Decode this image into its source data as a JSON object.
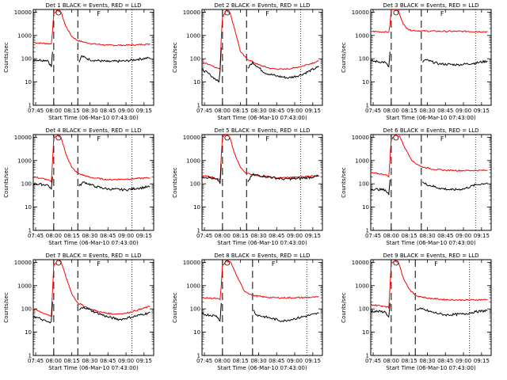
{
  "figure": {
    "xlabel": "Start Time (06-Mar-10 07:43:00)",
    "ylabel": "Counts/sec"
  },
  "chart_data": [
    {
      "type": "line",
      "title": "Det 1 BLACK = Events, RED = LLD",
      "annotation": "F",
      "xlabel": "Start Time (06-Mar-10 07:43:00)",
      "ylabel": "Counts/sec",
      "x_ticks": [
        "07:45",
        "08:00",
        "08:15",
        "08:30",
        "08:45",
        "09:00",
        "09:15"
      ],
      "y_ticks": [
        "1",
        "10",
        "100",
        "1000",
        "10000"
      ],
      "ylim": [
        1,
        13000
      ],
      "y_scale": "log",
      "dashed_markers": [
        "08:00",
        "08:20"
      ],
      "dotted_markers": [
        "09:05"
      ],
      "series": [
        {
          "color": "#ff0000",
          "x": [
            "07:43",
            "07:58",
            "07:59",
            "08:00",
            "08:03",
            "08:06",
            "08:10",
            "08:15",
            "08:20",
            "08:30",
            "08:45",
            "09:00",
            "09:10",
            "09:20"
          ],
          "values": [
            500,
            430,
            1500,
            9000,
            12000,
            10000,
            2500,
            900,
            600,
            450,
            380,
            380,
            400,
            430
          ]
        },
        {
          "color": "#000000",
          "x": [
            "07:43",
            "07:55",
            "07:58",
            "07:59",
            "08:00",
            "08:20",
            "08:21",
            "08:23",
            "08:30",
            "08:45",
            "09:00",
            "09:10",
            "09:20"
          ],
          "values": [
            90,
            85,
            45,
            200,
            null,
            null,
            70,
            130,
            90,
            75,
            80,
            95,
            110
          ]
        }
      ]
    },
    {
      "type": "line",
      "title": "Det 2 BLACK = Events, RED = LLD",
      "annotation": "F",
      "xlabel": "Start Time (06-Mar-10 07:43:00)",
      "ylabel": "Counts/sec",
      "x_ticks": [
        "07:45",
        "08:00",
        "08:15",
        "08:30",
        "08:45",
        "09:00",
        "09:15"
      ],
      "y_ticks": [
        "1",
        "10",
        "100",
        "1000",
        "10000"
      ],
      "ylim": [
        1,
        13000
      ],
      "y_scale": "log",
      "dashed_markers": [
        "08:00",
        "08:20"
      ],
      "dotted_markers": [
        "09:05"
      ],
      "series": [
        {
          "color": "#ff0000",
          "x": [
            "07:43",
            "07:50",
            "07:58",
            "07:59",
            "08:00",
            "08:03",
            "08:06",
            "08:10",
            "08:15",
            "08:20",
            "08:30",
            "08:40",
            "08:50",
            "09:00",
            "09:10",
            "09:20"
          ],
          "values": [
            70,
            55,
            35,
            800,
            6000,
            12000,
            10000,
            2000,
            200,
            100,
            55,
            38,
            35,
            40,
            55,
            80
          ]
        },
        {
          "color": "#000000",
          "x": [
            "07:43",
            "07:50",
            "07:57",
            "07:58",
            "07:59",
            "08:00",
            "08:20",
            "08:21",
            "08:25",
            "08:35",
            "08:45",
            "08:55",
            "09:05",
            "09:20"
          ],
          "values": [
            35,
            20,
            10,
            30,
            300,
            null,
            null,
            40,
            70,
            25,
            18,
            15,
            20,
            45
          ]
        }
      ]
    },
    {
      "type": "line",
      "title": "Det 3 BLACK = Events, RED = LLD",
      "annotation": "F",
      "xlabel": "Start Time (06-Mar-10 07:43:00)",
      "ylabel": "Counts/sec",
      "x_ticks": [
        "07:45",
        "08:00",
        "08:15",
        "08:30",
        "08:45",
        "09:00",
        "09:15"
      ],
      "y_ticks": [
        "1",
        "10",
        "100",
        "1000",
        "10000"
      ],
      "ylim": [
        1,
        13000
      ],
      "y_scale": "log",
      "dashed_markers": [
        "08:00",
        "08:25"
      ],
      "dotted_markers": [
        "09:10"
      ],
      "series": [
        {
          "color": "#ff0000",
          "x": [
            "07:43",
            "07:58",
            "07:59",
            "08:00",
            "08:03",
            "08:06",
            "08:10",
            "08:15",
            "08:25",
            "08:45",
            "09:00",
            "09:20"
          ],
          "values": [
            1500,
            1400,
            3000,
            12000,
            14000,
            12000,
            3000,
            1700,
            1550,
            1500,
            1500,
            1450
          ]
        },
        {
          "color": "#000000",
          "x": [
            "07:43",
            "07:55",
            "07:58",
            "07:59",
            "08:00",
            "08:25",
            "08:26",
            "08:28",
            "08:40",
            "08:55",
            "09:10",
            "09:20"
          ],
          "values": [
            80,
            70,
            45,
            200,
            null,
            null,
            70,
            90,
            60,
            55,
            65,
            80
          ]
        }
      ]
    },
    {
      "type": "line",
      "title": "Det 4 BLACK = Events, RED = LLD",
      "annotation": "F",
      "xlabel": "Start Time (06-Mar-10 07:43:00)",
      "ylabel": "Counts/sec",
      "x_ticks": [
        "07:45",
        "08:00",
        "08:15",
        "08:30",
        "08:45",
        "09:00",
        "09:15"
      ],
      "y_ticks": [
        "1",
        "10",
        "100",
        "1000",
        "10000"
      ],
      "ylim": [
        1,
        13000
      ],
      "y_scale": "log",
      "dashed_markers": [
        "08:00",
        "08:20"
      ],
      "dotted_markers": [
        "09:05"
      ],
      "series": [
        {
          "color": "#ff0000",
          "x": [
            "07:43",
            "07:55",
            "07:58",
            "07:59",
            "08:00",
            "08:03",
            "08:06",
            "08:10",
            "08:15",
            "08:20",
            "08:30",
            "08:45",
            "09:00",
            "09:20"
          ],
          "values": [
            200,
            150,
            120,
            900,
            9000,
            12000,
            10000,
            2000,
            500,
            280,
            190,
            150,
            160,
            180
          ]
        },
        {
          "color": "#000000",
          "x": [
            "07:43",
            "07:55",
            "07:58",
            "07:59",
            "08:00",
            "08:20",
            "08:21",
            "08:25",
            "08:35",
            "08:45",
            "09:00",
            "09:10",
            "09:20"
          ],
          "values": [
            100,
            90,
            60,
            200,
            null,
            null,
            80,
            120,
            75,
            60,
            55,
            65,
            75
          ]
        }
      ]
    },
    {
      "type": "line",
      "title": "Det 5 BLACK = Events, RED = LLD",
      "annotation": "F",
      "xlabel": "Start Time (06-Mar-10 07:43:00)",
      "ylabel": "Counts/sec",
      "x_ticks": [
        "07:45",
        "08:00",
        "08:15",
        "08:30",
        "08:45",
        "09:00",
        "09:15"
      ],
      "y_ticks": [
        "1",
        "10",
        "100",
        "1000",
        "10000"
      ],
      "ylim": [
        1,
        13000
      ],
      "y_scale": "log",
      "dashed_markers": [
        "08:00",
        "08:20"
      ],
      "dotted_markers": [
        "09:05"
      ],
      "series": [
        {
          "color": "#ff0000",
          "x": [
            "07:43",
            "07:50",
            "07:58",
            "07:59",
            "08:00",
            "08:03",
            "08:06",
            "08:10",
            "08:15",
            "08:20",
            "08:30",
            "08:45",
            "09:00",
            "09:20"
          ],
          "values": [
            220,
            200,
            150,
            1500,
            10000,
            13000,
            10000,
            2000,
            500,
            280,
            220,
            180,
            190,
            230
          ]
        },
        {
          "color": "#000000",
          "x": [
            "07:43",
            "07:50",
            "07:57",
            "07:58",
            "07:59",
            "08:00",
            "08:20",
            "08:21",
            "08:25",
            "08:35",
            "08:50",
            "09:05",
            "09:20"
          ],
          "values": [
            200,
            180,
            140,
            100,
            700,
            null,
            null,
            120,
            250,
            210,
            160,
            170,
            210
          ]
        }
      ]
    },
    {
      "type": "line",
      "title": "Det 6 BLACK = Events, RED = LLD",
      "annotation": "F",
      "xlabel": "Start Time (06-Mar-10 07:43:00)",
      "ylabel": "Counts/sec",
      "x_ticks": [
        "07:45",
        "08:00",
        "08:15",
        "08:30",
        "08:45",
        "09:00",
        "09:15"
      ],
      "y_ticks": [
        "1",
        "10",
        "100",
        "1000",
        "10000"
      ],
      "ylim": [
        1,
        13000
      ],
      "y_scale": "log",
      "dashed_markers": [
        "08:00",
        "08:25"
      ],
      "dotted_markers": [
        "09:10"
      ],
      "series": [
        {
          "color": "#ff0000",
          "x": [
            "07:43",
            "07:55",
            "07:58",
            "07:59",
            "08:00",
            "08:03",
            "08:07",
            "08:12",
            "08:18",
            "08:25",
            "08:35",
            "08:45",
            "09:00",
            "09:20"
          ],
          "values": [
            300,
            250,
            200,
            1200,
            8000,
            12000,
            11000,
            3000,
            900,
            550,
            420,
            380,
            370,
            380
          ]
        },
        {
          "color": "#000000",
          "x": [
            "07:43",
            "07:55",
            "07:58",
            "07:59",
            "08:00",
            "08:25",
            "08:26",
            "08:28",
            "08:40",
            "08:50",
            "09:00",
            "09:10",
            "09:20"
          ],
          "values": [
            60,
            55,
            35,
            150,
            null,
            null,
            120,
            100,
            65,
            55,
            60,
            90,
            110
          ]
        }
      ]
    },
    {
      "type": "line",
      "title": "Det 7 BLACK = Events, RED = LLD",
      "annotation": "F",
      "xlabel": "Start Time (06-Mar-10 07:43:00)",
      "ylabel": "Counts/sec",
      "x_ticks": [
        "07:45",
        "08:00",
        "08:15",
        "08:30",
        "08:45",
        "09:00",
        "09:15"
      ],
      "y_ticks": [
        "1",
        "10",
        "100",
        "1000",
        "10000"
      ],
      "ylim": [
        1,
        13000
      ],
      "y_scale": "log",
      "dashed_markers": [
        "08:00",
        "08:20"
      ],
      "dotted_markers": [
        "09:05"
      ],
      "series": [
        {
          "color": "#ff0000",
          "x": [
            "07:43",
            "07:50",
            "07:58",
            "07:59",
            "08:00",
            "08:03",
            "08:06",
            "08:10",
            "08:15",
            "08:20",
            "08:30",
            "08:40",
            "08:50",
            "09:00",
            "09:10",
            "09:20"
          ],
          "values": [
            100,
            70,
            50,
            600,
            7000,
            12000,
            11000,
            2500,
            450,
            180,
            100,
            70,
            60,
            65,
            90,
            130
          ]
        },
        {
          "color": "#000000",
          "x": [
            "07:43",
            "07:50",
            "07:57",
            "07:58",
            "07:59",
            "08:00",
            "08:20",
            "08:21",
            "08:25",
            "08:35",
            "08:45",
            "08:55",
            "09:05",
            "09:20"
          ],
          "values": [
            50,
            35,
            25,
            30,
            200,
            null,
            null,
            90,
            120,
            70,
            45,
            35,
            45,
            70
          ]
        }
      ]
    },
    {
      "type": "line",
      "title": "Det 8 BLACK = Events, RED = LLD",
      "annotation": "F",
      "xlabel": "Start Time (06-Mar-10 07:43:00)",
      "ylabel": "Counts/sec",
      "x_ticks": [
        "07:45",
        "08:00",
        "08:15",
        "08:30",
        "08:45",
        "09:00",
        "09:15"
      ],
      "y_ticks": [
        "1",
        "10",
        "100",
        "1000",
        "10000"
      ],
      "ylim": [
        1,
        13000
      ],
      "y_scale": "log",
      "dashed_markers": [
        "08:00",
        "08:25"
      ],
      "dotted_markers": [
        "09:10"
      ],
      "series": [
        {
          "color": "#ff0000",
          "x": [
            "07:43",
            "07:55",
            "07:58",
            "07:59",
            "08:00",
            "08:03",
            "08:07",
            "08:12",
            "08:18",
            "08:25",
            "08:35",
            "08:45",
            "09:00",
            "09:20"
          ],
          "values": [
            300,
            280,
            250,
            1000,
            7000,
            11000,
            10000,
            2500,
            600,
            380,
            320,
            300,
            300,
            320
          ]
        },
        {
          "color": "#000000",
          "x": [
            "07:43",
            "07:55",
            "07:58",
            "07:59",
            "08:00",
            "08:25",
            "08:26",
            "08:28",
            "08:40",
            "08:50",
            "09:00",
            "09:10",
            "09:20"
          ],
          "values": [
            60,
            50,
            30,
            180,
            null,
            null,
            90,
            55,
            40,
            30,
            38,
            50,
            65
          ]
        }
      ]
    },
    {
      "type": "line",
      "title": "Det 9 BLACK = Events, RED = LLD",
      "annotation": "F",
      "xlabel": "Start Time (06-Mar-10 07:43:00)",
      "ylabel": "Counts/sec",
      "x_ticks": [
        "07:45",
        "08:00",
        "08:15",
        "08:30",
        "08:45",
        "09:00",
        "09:15"
      ],
      "y_ticks": [
        "1",
        "10",
        "100",
        "1000",
        "10000"
      ],
      "ylim": [
        1,
        13000
      ],
      "y_scale": "log",
      "dashed_markers": [
        "08:00",
        "08:20"
      ],
      "dotted_markers": [
        "09:05"
      ],
      "series": [
        {
          "color": "#ff0000",
          "x": [
            "07:43",
            "07:55",
            "07:58",
            "07:59",
            "08:00",
            "08:03",
            "08:06",
            "08:10",
            "08:15",
            "08:20",
            "08:30",
            "08:45",
            "09:00",
            "09:20"
          ],
          "values": [
            150,
            130,
            110,
            900,
            9000,
            12000,
            10000,
            2200,
            700,
            380,
            290,
            250,
            240,
            250
          ]
        },
        {
          "color": "#000000",
          "x": [
            "07:43",
            "07:55",
            "07:58",
            "07:59",
            "08:00",
            "08:20",
            "08:21",
            "08:25",
            "08:35",
            "08:45",
            "09:00",
            "09:10",
            "09:20"
          ],
          "values": [
            80,
            75,
            45,
            180,
            null,
            null,
            90,
            100,
            70,
            55,
            60,
            75,
            85
          ]
        }
      ]
    }
  ]
}
